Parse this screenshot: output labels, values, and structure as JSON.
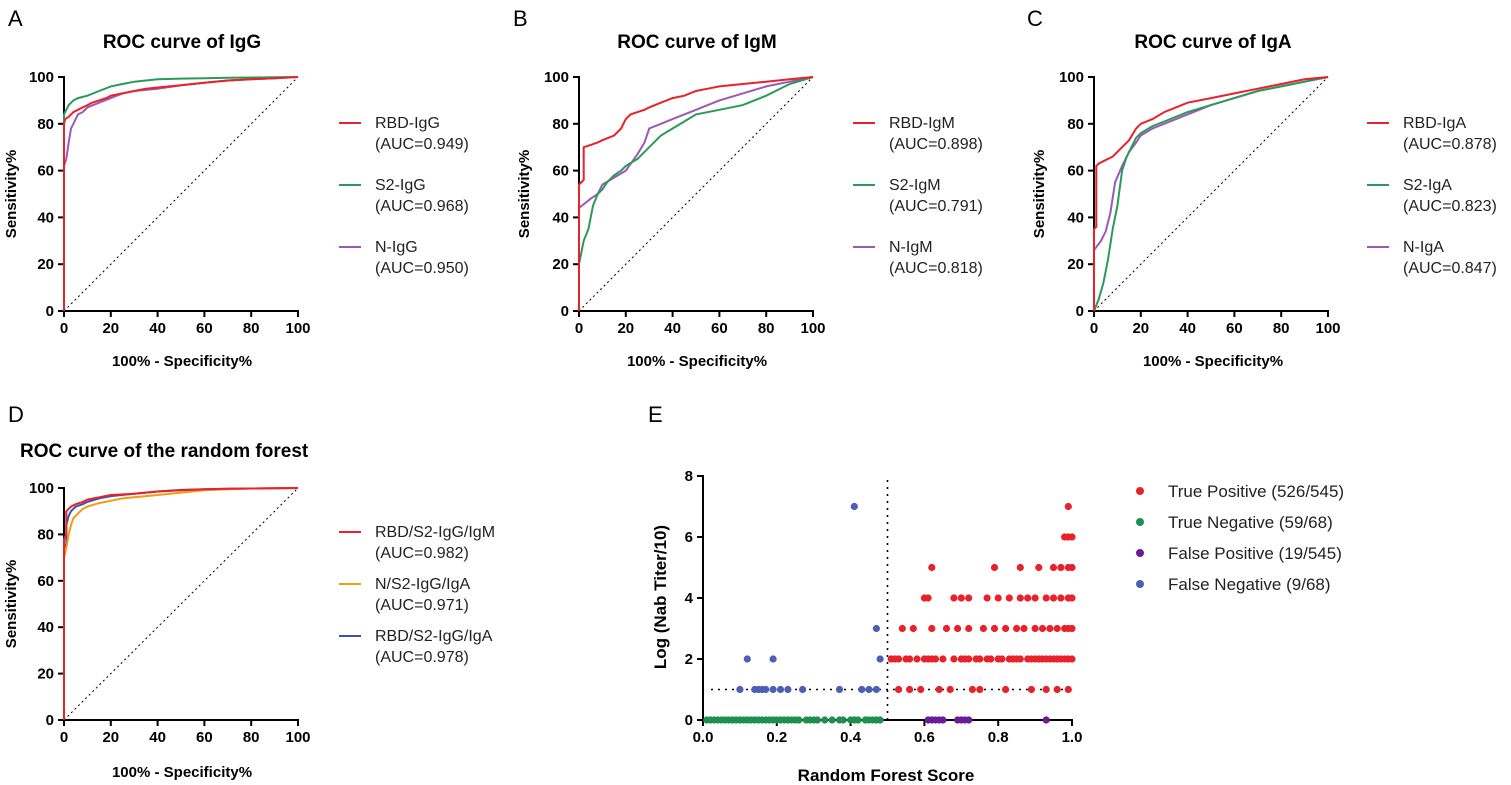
{
  "chart_data": [
    {
      "panel": "A",
      "type": "line",
      "title": "ROC curve of IgG",
      "xlabel": "100% - Specificity%",
      "ylabel": "Sensitivity%",
      "xlim": [
        0,
        100
      ],
      "ylim": [
        0,
        100
      ],
      "xticks": [
        0,
        20,
        40,
        60,
        80,
        100
      ],
      "yticks": [
        0,
        20,
        40,
        60,
        80,
        100
      ],
      "series": [
        {
          "name": "RBD-IgG",
          "auc": "(AUC=0.949)",
          "color": "#e8222a",
          "x": [
            0,
            0,
            0.5,
            2,
            3,
            4,
            6,
            8,
            10,
            12,
            15,
            18,
            20,
            25,
            30,
            35,
            40,
            50,
            60,
            70,
            80,
            90,
            100
          ],
          "y": [
            0,
            80,
            82,
            83,
            84,
            85,
            86,
            87,
            88,
            89,
            90,
            91,
            92,
            93,
            94,
            95,
            95.5,
            96.5,
            97.5,
            98.5,
            99,
            99.5,
            100
          ]
        },
        {
          "name": "S2-IgG",
          "auc": "(AUC=0.968)",
          "color": "#2a9a5a",
          "x": [
            0,
            0,
            1,
            2,
            3,
            4,
            6,
            8,
            10,
            15,
            20,
            25,
            30,
            40,
            50,
            60,
            70,
            80,
            90,
            100
          ],
          "y": [
            0,
            84,
            86,
            88,
            89,
            90,
            91,
            91.5,
            92,
            94,
            96,
            97,
            98,
            99,
            99.3,
            99.5,
            99.7,
            99.8,
            99.9,
            100
          ]
        },
        {
          "name": "N-IgG",
          "auc": "(AUC=0.950)",
          "color": "#9b59b6",
          "x": [
            0,
            0,
            1,
            2,
            3,
            4,
            5,
            6,
            8,
            10,
            15,
            20,
            25,
            30,
            40,
            50,
            60,
            70,
            80,
            90,
            100
          ],
          "y": [
            0,
            62,
            65,
            72,
            78,
            80,
            82,
            84,
            85,
            87,
            89,
            91,
            93,
            94,
            95,
            96.5,
            97.5,
            98.5,
            99,
            99.5,
            100
          ]
        }
      ]
    },
    {
      "panel": "B",
      "type": "line",
      "title": "ROC curve of IgM",
      "xlabel": "100% - Specificity%",
      "ylabel": "Sensitivity%",
      "xlim": [
        0,
        100
      ],
      "ylim": [
        0,
        100
      ],
      "xticks": [
        0,
        20,
        40,
        60,
        80,
        100
      ],
      "yticks": [
        0,
        20,
        40,
        60,
        80,
        100
      ],
      "series": [
        {
          "name": "RBD-IgM",
          "auc": "(AUC=0.898)",
          "color": "#e8222a",
          "x": [
            0,
            0,
            2,
            2,
            5,
            8,
            10,
            15,
            18,
            20,
            22,
            25,
            28,
            30,
            35,
            40,
            45,
            50,
            55,
            60,
            70,
            80,
            90,
            100
          ],
          "y": [
            0,
            54,
            56,
            70,
            71,
            72,
            73,
            75,
            78,
            82,
            84,
            85,
            86,
            87,
            89,
            91,
            92,
            94,
            95,
            96,
            97,
            98,
            99,
            100
          ]
        },
        {
          "name": "S2-IgM",
          "auc": "(AUC=0.791)",
          "color": "#2a9a5a",
          "x": [
            0,
            0,
            2,
            4,
            6,
            8,
            10,
            12,
            15,
            18,
            20,
            25,
            30,
            35,
            40,
            45,
            50,
            60,
            70,
            80,
            90,
            100
          ],
          "y": [
            0,
            20,
            30,
            35,
            45,
            50,
            52,
            55,
            58,
            60,
            62,
            65,
            70,
            75,
            78,
            81,
            84,
            86,
            88,
            92,
            97,
            100
          ]
        },
        {
          "name": "N-IgM",
          "auc": "(AUC=0.818)",
          "color": "#9b59b6",
          "x": [
            0,
            0,
            5,
            8,
            10,
            15,
            20,
            25,
            28,
            30,
            35,
            40,
            45,
            50,
            55,
            60,
            70,
            80,
            90,
            100
          ],
          "y": [
            0,
            44,
            48,
            50,
            54,
            57,
            60,
            67,
            72,
            78,
            80,
            82,
            84,
            86,
            88,
            90,
            93,
            96,
            98,
            100
          ]
        }
      ]
    },
    {
      "panel": "C",
      "type": "line",
      "title": "ROC curve of IgA",
      "xlabel": "100% - Specificity%",
      "ylabel": "Sensitivity%",
      "xlim": [
        0,
        100
      ],
      "ylim": [
        0,
        100
      ],
      "xticks": [
        0,
        20,
        40,
        60,
        80,
        100
      ],
      "yticks": [
        0,
        20,
        40,
        60,
        80,
        100
      ],
      "series": [
        {
          "name": "RBD-IgA",
          "auc": "(AUC=0.878)",
          "color": "#e8222a",
          "x": [
            0,
            0,
            1,
            1,
            2,
            4,
            6,
            8,
            10,
            12,
            15,
            18,
            20,
            25,
            30,
            35,
            40,
            50,
            60,
            70,
            80,
            90,
            100
          ],
          "y": [
            0,
            35,
            36,
            62,
            63,
            64,
            65,
            66,
            68,
            70,
            73,
            78,
            80,
            82,
            85,
            87,
            89,
            91,
            93,
            95,
            97,
            99,
            100
          ]
        },
        {
          "name": "S2-IgA",
          "auc": "(AUC=0.823)",
          "color": "#2a9a5a",
          "x": [
            0,
            0,
            2,
            4,
            6,
            8,
            10,
            12,
            14,
            16,
            18,
            20,
            25,
            30,
            40,
            50,
            60,
            70,
            80,
            90,
            100
          ],
          "y": [
            0,
            0,
            5,
            12,
            22,
            35,
            45,
            60,
            66,
            70,
            74,
            76,
            79,
            81,
            85,
            88,
            91,
            94,
            96,
            98,
            100
          ]
        },
        {
          "name": "N-IgA",
          "auc": "(AUC=0.847)",
          "color": "#9b59b6",
          "x": [
            0,
            0,
            3,
            5,
            7,
            9,
            12,
            15,
            18,
            20,
            25,
            30,
            40,
            50,
            60,
            70,
            80,
            90,
            100
          ],
          "y": [
            0,
            26,
            30,
            34,
            42,
            55,
            62,
            68,
            72,
            75,
            78,
            80,
            84,
            88,
            91,
            94,
            96,
            98,
            100
          ]
        }
      ]
    },
    {
      "panel": "D",
      "type": "line",
      "title": "ROC curve of the random forest",
      "xlabel": "100% - Specificity%",
      "ylabel": "Sensitivity%",
      "xlim": [
        0,
        100
      ],
      "ylim": [
        0,
        100
      ],
      "xticks": [
        0,
        20,
        40,
        60,
        80,
        100
      ],
      "yticks": [
        0,
        20,
        40,
        60,
        80,
        100
      ],
      "series": [
        {
          "name": "RBD/S2-IgG/IgM",
          "auc": "(AUC=0.982)",
          "color": "#e8222a",
          "x": [
            0,
            0,
            1,
            1,
            3,
            5,
            8,
            10,
            15,
            20,
            30,
            40,
            50,
            60,
            70,
            80,
            90,
            100
          ],
          "y": [
            0,
            78,
            80,
            90,
            92,
            93,
            94,
            95,
            96,
            97,
            97.5,
            98.5,
            99,
            99.5,
            99.7,
            99.8,
            99.9,
            100
          ]
        },
        {
          "name": "N/S2-IgG/IgA",
          "auc": "(AUC=0.971)",
          "color": "#f39c12",
          "x": [
            0,
            0,
            1,
            2,
            3,
            4,
            6,
            8,
            10,
            15,
            20,
            25,
            30,
            40,
            50,
            60,
            70,
            80,
            90,
            100
          ],
          "y": [
            0,
            70,
            74,
            80,
            84,
            87,
            89,
            91,
            92,
            93.5,
            94.5,
            95.5,
            96,
            97,
            98,
            99,
            99.5,
            99.8,
            99.9,
            100
          ]
        },
        {
          "name": "RBD/S2-IgG/IgA",
          "auc": "(AUC=0.978)",
          "color": "#3b4fb5",
          "x": [
            0,
            0,
            1,
            1,
            2,
            3,
            5,
            8,
            10,
            15,
            20,
            30,
            40,
            50,
            60,
            70,
            80,
            90,
            100
          ],
          "y": [
            0,
            74,
            76,
            84,
            88,
            90,
            92,
            93,
            94,
            95.5,
            96.5,
            97.5,
            98.5,
            99.2,
            99.5,
            99.7,
            99.8,
            99.9,
            100
          ]
        }
      ]
    },
    {
      "panel": "E",
      "type": "scatter",
      "xlabel": "Random Forest Score",
      "ylabel": "Log (Nab Titer/10)",
      "xlim": [
        0,
        1
      ],
      "ylim": [
        0,
        8
      ],
      "xticks": [
        "0.0",
        "0.2",
        "0.4",
        "0.6",
        "0.8",
        "1.0"
      ],
      "yticks": [
        "0",
        "2",
        "4",
        "6",
        "8"
      ],
      "threshold_x": 0.5,
      "threshold_y": 1,
      "series": [
        {
          "name": "True Positive (526/545)",
          "color": "#e8222a",
          "x": [
            0.51,
            0.52,
            0.53,
            0.55,
            0.56,
            0.58,
            0.6,
            0.61,
            0.62,
            0.63,
            0.65,
            0.68,
            0.7,
            0.71,
            0.72,
            0.74,
            0.75,
            0.77,
            0.78,
            0.8,
            0.81,
            0.83,
            0.84,
            0.85,
            0.86,
            0.88,
            0.89,
            0.9,
            0.91,
            0.92,
            0.93,
            0.94,
            0.95,
            0.96,
            0.97,
            0.98,
            0.99,
            1.0,
            0.54,
            0.57,
            0.62,
            0.66,
            0.69,
            0.72,
            0.76,
            0.79,
            0.82,
            0.85,
            0.87,
            0.9,
            0.92,
            0.94,
            0.96,
            0.98,
            0.99,
            1.0,
            0.6,
            0.61,
            0.68,
            0.7,
            0.72,
            0.77,
            0.8,
            0.83,
            0.86,
            0.88,
            0.9,
            0.93,
            0.95,
            0.97,
            0.99,
            1.0,
            0.62,
            0.79,
            0.86,
            0.91,
            0.95,
            0.97,
            0.99,
            1.0,
            0.98,
            0.99,
            1.0,
            0.99,
            0.53,
            0.56,
            0.59,
            0.64,
            0.67,
            0.73,
            0.75,
            0.82,
            0.89,
            0.93,
            0.96,
            0.99
          ],
          "y": [
            2,
            2,
            2,
            2,
            2,
            2,
            2,
            2,
            2,
            2,
            2,
            2,
            2,
            2,
            2,
            2,
            2,
            2,
            2,
            2,
            2,
            2,
            2,
            2,
            2,
            2,
            2,
            2,
            2,
            2,
            2,
            2,
            2,
            2,
            2,
            2,
            2,
            2,
            3,
            3,
            3,
            3,
            3,
            3,
            3,
            3,
            3,
            3,
            3,
            3,
            3,
            3,
            3,
            3,
            3,
            3,
            4,
            4,
            4,
            4,
            4,
            4,
            4,
            4,
            4,
            4,
            4,
            4,
            4,
            4,
            4,
            4,
            5,
            5,
            5,
            5,
            5,
            5,
            5,
            5,
            6,
            6,
            6,
            7,
            1,
            1,
            1,
            1,
            1,
            1,
            1,
            1,
            1,
            1,
            1,
            1
          ]
        },
        {
          "name": "True Negative (59/68)",
          "color": "#1e8f4e",
          "x": [
            0.01,
            0.02,
            0.03,
            0.04,
            0.05,
            0.06,
            0.07,
            0.08,
            0.09,
            0.1,
            0.11,
            0.12,
            0.13,
            0.14,
            0.15,
            0.16,
            0.17,
            0.18,
            0.19,
            0.2,
            0.21,
            0.22,
            0.23,
            0.24,
            0.25,
            0.26,
            0.28,
            0.29,
            0.3,
            0.31,
            0.33,
            0.35,
            0.37,
            0.38,
            0.4,
            0.41,
            0.42,
            0.44,
            0.45,
            0.46,
            0.47,
            0.48
          ],
          "y": [
            0,
            0,
            0,
            0,
            0,
            0,
            0,
            0,
            0,
            0,
            0,
            0,
            0,
            0,
            0,
            0,
            0,
            0,
            0,
            0,
            0,
            0,
            0,
            0,
            0,
            0,
            0,
            0,
            0,
            0,
            0,
            0,
            0,
            0,
            0,
            0,
            0,
            0,
            0,
            0,
            0,
            0
          ]
        },
        {
          "name": "False Positive (19/545)",
          "color": "#6a1b9a",
          "x": [
            0.61,
            0.62,
            0.63,
            0.64,
            0.65,
            0.69,
            0.7,
            0.71,
            0.72,
            0.93
          ],
          "y": [
            0,
            0,
            0,
            0,
            0,
            0,
            0,
            0,
            0,
            0
          ]
        },
        {
          "name": "False Negative (9/68)",
          "color": "#4a5fb5",
          "x": [
            0.1,
            0.14,
            0.15,
            0.16,
            0.17,
            0.19,
            0.21,
            0.23,
            0.27,
            0.37,
            0.43,
            0.45,
            0.47,
            0.12,
            0.19,
            0.48,
            0.47,
            0.41
          ],
          "y": [
            1,
            1,
            1,
            1,
            1,
            1,
            1,
            1,
            1,
            1,
            1,
            1,
            1,
            2,
            2,
            2,
            3,
            7
          ]
        }
      ]
    }
  ]
}
